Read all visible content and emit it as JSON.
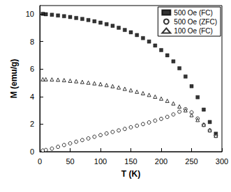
{
  "chart_data": {
    "type": "scatter",
    "x_label": "T (K)",
    "y_label": "M (emu/g)",
    "xlim": [
      0,
      300
    ],
    "xticks": [
      0,
      50,
      100,
      150,
      200,
      250,
      300
    ],
    "ylim": [
      0,
      10.6
    ],
    "yticks": [
      0,
      2,
      4,
      6,
      8,
      10
    ],
    "grid": false,
    "legend": "upper right",
    "series": [
      {
        "name": "500 Oe (FC)",
        "color": "#000000",
        "marker": "square",
        "x": [
          5,
          10,
          20,
          30,
          40,
          50,
          60,
          70,
          80,
          90,
          100,
          110,
          120,
          130,
          140,
          150,
          160,
          170,
          180,
          190,
          200,
          210,
          220,
          230,
          240,
          250,
          260,
          270,
          280,
          290
        ],
        "values": [
          10.0,
          9.97,
          9.93,
          9.88,
          9.83,
          9.77,
          9.7,
          9.63,
          9.55,
          9.46,
          9.36,
          9.25,
          9.13,
          8.99,
          8.83,
          8.66,
          8.46,
          8.24,
          7.99,
          7.7,
          7.37,
          6.99,
          6.55,
          6.05,
          5.45,
          4.75,
          3.95,
          3.05,
          2.15,
          1.3
        ]
      },
      {
        "name": "500 Oe (ZFC)",
        "color": "#000000",
        "marker": "open_circle",
        "x": [
          5,
          10,
          20,
          30,
          40,
          50,
          60,
          70,
          80,
          90,
          100,
          110,
          120,
          130,
          140,
          150,
          160,
          170,
          180,
          190,
          200,
          210,
          220,
          230,
          240,
          250,
          260,
          270,
          280,
          290
        ],
        "values": [
          0.08,
          0.12,
          0.22,
          0.35,
          0.48,
          0.6,
          0.72,
          0.84,
          0.96,
          1.08,
          1.2,
          1.32,
          1.43,
          1.54,
          1.65,
          1.77,
          1.88,
          2.0,
          2.12,
          2.25,
          2.38,
          2.52,
          2.7,
          2.9,
          3.08,
          2.85,
          2.4,
          1.95,
          1.55,
          1.15
        ]
      },
      {
        "name": "100 Oe (FC)",
        "color": "#000000",
        "marker": "open_triangle",
        "x": [
          5,
          10,
          20,
          30,
          40,
          50,
          60,
          70,
          80,
          90,
          100,
          110,
          120,
          130,
          140,
          150,
          160,
          170,
          180,
          190,
          200,
          210,
          220,
          230,
          240,
          250,
          260,
          270,
          280,
          290
        ],
        "values": [
          5.25,
          5.25,
          5.24,
          5.22,
          5.19,
          5.15,
          5.11,
          5.06,
          5.01,
          4.96,
          4.9,
          4.83,
          4.75,
          4.66,
          4.56,
          4.46,
          4.35,
          4.24,
          4.12,
          3.99,
          3.85,
          3.69,
          3.5,
          3.28,
          3.0,
          2.65,
          2.3,
          1.95,
          1.55,
          1.15
        ]
      }
    ]
  }
}
